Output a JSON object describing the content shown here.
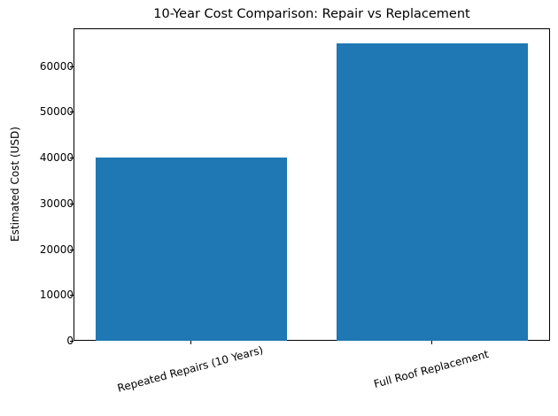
{
  "chart_data": {
    "type": "bar",
    "title": "10-Year Cost Comparison: Repair vs Replacement",
    "xlabel": "",
    "ylabel": "Estimated Cost (USD)",
    "categories": [
      "Repeated Repairs (10 Years)",
      "Full Roof Replacement"
    ],
    "values": [
      40000,
      65000
    ],
    "ylim": [
      0,
      68250
    ],
    "yticks": [
      "0",
      "10000",
      "20000",
      "30000",
      "40000",
      "50000",
      "60000"
    ],
    "bar_color": "#1f77b4",
    "grid": false,
    "legend": null,
    "xtick_rotation": -15
  }
}
